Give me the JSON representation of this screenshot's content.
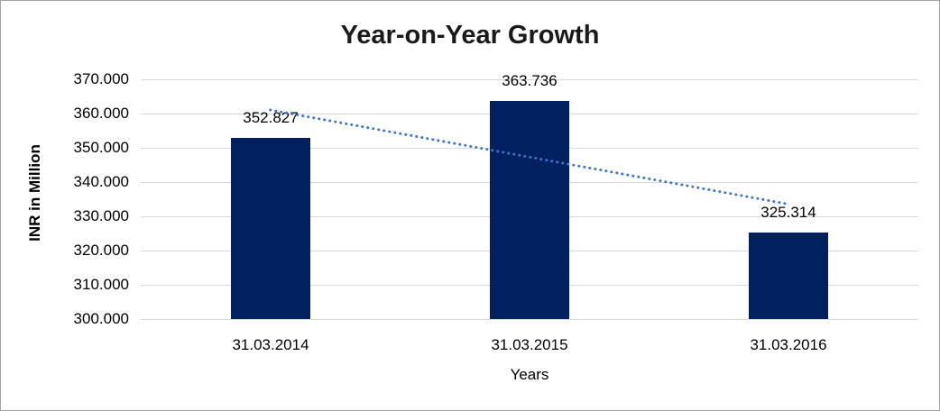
{
  "window": {
    "background": "#FFFFFF",
    "frame_border_color": "#A3A3A3"
  },
  "chart_data": {
    "type": "bar",
    "title": "Year-on-Year Growth",
    "categories": [
      "31.03.2014",
      "31.03.2015",
      "31.03.2016"
    ],
    "values": [
      352.827,
      363.736,
      325.314
    ],
    "data_labels": [
      "352.827",
      "363.736",
      "325.314"
    ],
    "xlabel": "Years",
    "ylabel": "INR in Million",
    "ylim": [
      300,
      370
    ],
    "yticks": [
      300,
      310,
      320,
      330,
      340,
      350,
      360,
      370
    ],
    "ytick_labels": [
      "300.000",
      "310.000",
      "320.000",
      "330.000",
      "340.000",
      "350.000",
      "360.000",
      "370.000"
    ],
    "grid": true,
    "legend": false,
    "trendline": {
      "type": "linear",
      "style": "dotted",
      "start_value": 361.05,
      "end_value": 333.54,
      "color": "#4472C4"
    },
    "colors": {
      "bar": "#002060",
      "gridline": "#D9D9D9",
      "text": "#000000",
      "title": "#1A1A1A"
    }
  }
}
